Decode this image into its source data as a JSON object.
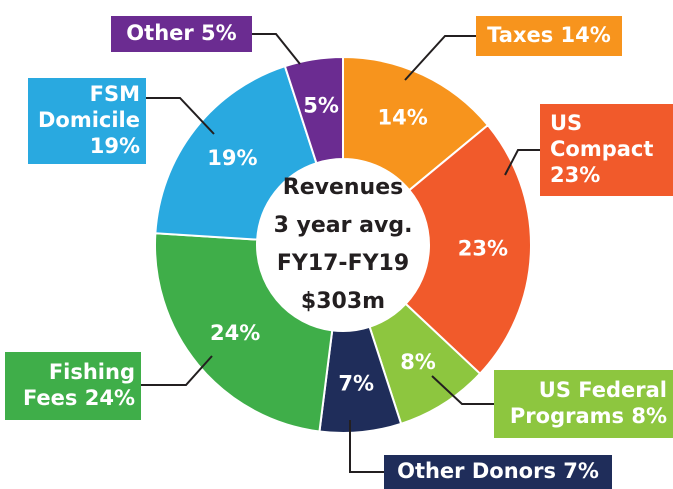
{
  "chart_data": {
    "type": "pie",
    "center_text": [
      "Revenues",
      "3 year avg.",
      "FY17-FY19",
      "$303m"
    ],
    "labels": [
      [
        "Taxes 14%"
      ],
      [
        "US",
        "Compact",
        "23%"
      ],
      [
        "US Federal",
        "Programs 8%"
      ],
      [
        "Other Donors 7%"
      ],
      [
        "Fishing",
        "Fees 24%"
      ],
      [
        "FSM",
        "Domicile",
        "19%"
      ],
      [
        "Other 5%"
      ]
    ],
    "values": [
      14,
      23,
      8,
      7,
      24,
      19,
      5
    ],
    "value_labels": [
      "14%",
      "23%",
      "8%",
      "7%",
      "24%",
      "19%",
      "5%"
    ],
    "colors": [
      "#f7941d",
      "#f15a2b",
      "#8dc63f",
      "#1f2d5a",
      "#3fae49",
      "#29a9e0",
      "#6b2c91"
    ]
  }
}
